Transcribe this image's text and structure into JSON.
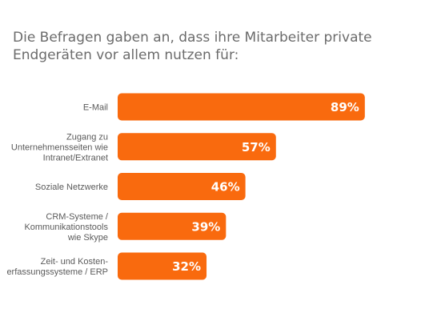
{
  "chart_data": {
    "type": "bar",
    "orientation": "horizontal",
    "title_lines": [
      "Die Befragen gaben an, dass ihre Mitarbeiter private",
      "Endgeräten vor allem nutzen für:"
    ],
    "categories": [
      [
        "E-Mail"
      ],
      [
        "Zugang zu",
        "Unternehmensseiten wie",
        "Intranet/Extranet"
      ],
      [
        "Soziale Netzwerke"
      ],
      [
        "CRM-Systeme /",
        "Kommunikationstools",
        "wie Skype"
      ],
      [
        "Zeit- und Kosten-",
        "erfassungssysteme / ERP"
      ]
    ],
    "values": [
      89,
      57,
      46,
      39,
      32
    ],
    "value_labels": [
      "89%",
      "57%",
      "46%",
      "39%",
      "32%"
    ],
    "xlim": [
      0,
      100
    ],
    "grid": false,
    "bar_color": "#f96a0e"
  }
}
